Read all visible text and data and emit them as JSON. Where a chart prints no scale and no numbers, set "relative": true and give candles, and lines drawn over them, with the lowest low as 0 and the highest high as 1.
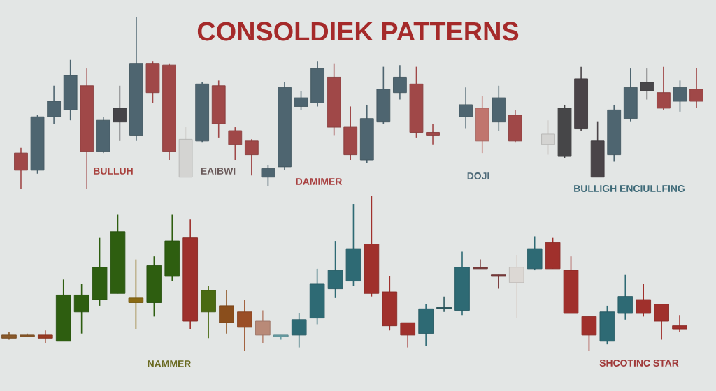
{
  "chart_data": [
    {
      "type": "candlestick",
      "title": "CONSOLDIEK PATTERNS",
      "relative": true,
      "categories": [
        null,
        null,
        null,
        null,
        null,
        null,
        null,
        null,
        null,
        null,
        null,
        null,
        null,
        null,
        null,
        null,
        null,
        null,
        null,
        null,
        null,
        null,
        null,
        null,
        null,
        null,
        null,
        null,
        null,
        null,
        null,
        null,
        null,
        null,
        null,
        null,
        null,
        null,
        null,
        null,
        null,
        null
      ],
      "ohlc": [
        [
          0.21,
          0.24,
          0,
          0.11
        ],
        [
          0.11,
          0.43,
          0.09,
          0.42
        ],
        [
          0.42,
          0.6,
          0.38,
          0.51
        ],
        [
          0.46,
          0.75,
          0.4,
          0.66
        ],
        [
          0.6,
          0.7,
          0,
          0.22
        ],
        [
          0.22,
          0.42,
          0.21,
          0.4
        ],
        [
          0.39,
          0.6,
          0.28,
          0.47
        ],
        [
          0.31,
          1,
          0.28,
          0.73
        ],
        [
          0.73,
          0.74,
          0.5,
          0.56
        ],
        [
          0.72,
          0.73,
          0.17,
          0.22
        ],
        [
          0.07,
          0.36,
          0.07,
          0.29
        ],
        [
          0.28,
          0.62,
          0.27,
          0.61
        ],
        [
          0.6,
          0.63,
          0.3,
          0.38
        ],
        [
          0.34,
          0.36,
          0.17,
          0.26
        ],
        [
          0.28,
          0.29,
          0.08,
          0.2
        ],
        [
          0.07,
          0.14,
          0.02,
          0.12
        ],
        [
          0.13,
          0.62,
          0.11,
          0.59
        ],
        [
          0.48,
          0.57,
          0.46,
          0.53
        ],
        [
          0.5,
          0.74,
          0.48,
          0.7
        ],
        [
          0.65,
          0.73,
          0.31,
          0.36
        ],
        [
          0.36,
          0.48,
          0.17,
          0.2
        ],
        [
          0.17,
          0.49,
          0.15,
          0.41
        ],
        [
          0.39,
          0.71,
          0.38,
          0.58
        ],
        [
          0.56,
          0.72,
          0.52,
          0.65
        ],
        [
          0.61,
          0.71,
          0.3,
          0.33
        ],
        [
          0.33,
          0.38,
          0.26,
          0.31
        ],
        null,
        [
          0.42,
          0.59,
          0.35,
          0.49
        ],
        [
          0.47,
          0.54,
          0.21,
          0.28
        ],
        [
          0.39,
          0.6,
          0.34,
          0.53
        ],
        [
          0.43,
          0.46,
          0.27,
          0.28
        ],
        null,
        [
          0.26,
          0.4,
          0.2,
          0.32
        ],
        [
          0.19,
          0.49,
          0.18,
          0.47
        ],
        [
          0.35,
          0.71,
          0.34,
          0.64
        ],
        [
          0.28,
          0.39,
          0.07,
          0.07
        ],
        [
          0.2,
          0.49,
          0.16,
          0.46
        ],
        [
          0.41,
          0.7,
          0.39,
          0.59
        ],
        [
          0.62,
          0.7,
          0.52,
          0.57
        ],
        [
          0.56,
          0.71,
          0.46,
          0.47
        ],
        [
          0.51,
          0.63,
          0.45,
          0.59
        ],
        [
          0.58,
          0.7,
          0.47,
          0.51
        ]
      ],
      "colors": [
        "#a04848",
        "#4e6570",
        "#4e6570",
        "#4e6570",
        "#a04848",
        "#4e6570",
        "#454448",
        "#4e6570",
        "#a04848",
        "#a04848",
        "#d4d4d2",
        "#4e6570",
        "#a04848",
        "#a04848",
        "#a04848",
        "#4e6570",
        "#4e6570",
        "#4e6570",
        "#4e6570",
        "#a04848",
        "#a04848",
        "#4e6570",
        "#4e6570",
        "#4e6570",
        "#a04848",
        "#a04848",
        null,
        "#4e6570",
        "#c0756e",
        "#4e6570",
        "#a04848",
        null,
        "#d4d4d2",
        "#464648",
        "#4a4448",
        "#4a4448",
        "#4e6570",
        "#4e6570",
        "#48474a",
        "#a04848",
        "#4e6570",
        "#a04848"
      ],
      "annotations": [
        "BULLUH",
        "EAIBWI",
        "DAMIMER",
        "DOJI",
        "BULLIGH ENCIULLFING"
      ]
    },
    {
      "type": "candlestick",
      "relative": true,
      "categories": [
        null,
        null,
        null,
        null,
        null,
        null,
        null,
        null,
        null,
        null,
        null,
        null,
        null,
        null,
        null,
        null,
        null,
        null,
        null,
        null,
        null,
        null,
        null,
        null,
        null,
        null,
        null,
        null,
        null,
        null,
        null,
        null,
        null,
        null,
        null,
        null,
        null,
        null
      ],
      "ohlc": [
        [
          0.1,
          0.12,
          0.07,
          0.08
        ],
        [
          0.1,
          0.11,
          0.09,
          0.09
        ],
        [
          0.1,
          0.13,
          0.05,
          0.08
        ],
        [
          0.06,
          0.46,
          0.06,
          0.36
        ],
        [
          0.25,
          0.43,
          0.11,
          0.36
        ],
        [
          0.33,
          0.73,
          0.29,
          0.54
        ],
        [
          0.37,
          0.88,
          0.37,
          0.77
        ],
        [
          0.34,
          0.59,
          0.14,
          0.31
        ],
        [
          0.31,
          0.61,
          0.22,
          0.55
        ],
        [
          0.48,
          0.88,
          0.45,
          0.71
        ],
        [
          0.73,
          0.85,
          0.14,
          0.19
        ],
        [
          0.25,
          0.42,
          0.08,
          0.39
        ],
        [
          0.29,
          0.39,
          0.11,
          0.18
        ],
        [
          0.25,
          0.33,
          0,
          0.15
        ],
        [
          0.19,
          0.26,
          0.05,
          0.1
        ],
        [
          0.09,
          0.1,
          0.07,
          0.1
        ],
        [
          0.1,
          0.24,
          0.02,
          0.2
        ],
        [
          0.21,
          0.53,
          0.17,
          0.43
        ],
        [
          0.4,
          0.71,
          0.34,
          0.52
        ],
        [
          0.45,
          0.95,
          0.42,
          0.66
        ],
        [
          0.69,
          1,
          0.35,
          0.37
        ],
        [
          0.38,
          0.48,
          0.13,
          0.16
        ],
        [
          0.18,
          0.18,
          0.02,
          0.1
        ],
        [
          0.11,
          0.3,
          0.03,
          0.27
        ],
        [
          0.27,
          0.35,
          0.25,
          0.28
        ],
        [
          0.26,
          0.64,
          0.23,
          0.54
        ],
        [
          0.54,
          0.59,
          0.53,
          0.53
        ],
        [
          0.49,
          0.49,
          0.4,
          0.48
        ],
        [
          0.44,
          0.62,
          0.21,
          0.54
        ],
        [
          0.53,
          0.74,
          0.52,
          0.66
        ],
        [
          0.7,
          0.73,
          0.53,
          0.53
        ],
        [
          0.52,
          0.61,
          0.24,
          0.24
        ],
        [
          0.22,
          0.22,
          0,
          0.1
        ],
        [
          0.06,
          0.29,
          0.04,
          0.25
        ],
        [
          0.24,
          0.49,
          0.2,
          0.35
        ],
        [
          0.33,
          0.43,
          0.22,
          0.24
        ],
        [
          0.3,
          0.3,
          0.07,
          0.19
        ],
        [
          0.16,
          0.23,
          0.12,
          0.14
        ]
      ],
      "colors": [
        "#8a5a2a",
        "#8a5a2a",
        "#9a3a22",
        "#2e5e10",
        "#2e5e10",
        "#2e5e10",
        "#2e5e10",
        "#8a6a14",
        "#2e5e10",
        "#2e5e10",
        "#9e302c",
        "#4a6a12",
        "#8a4e1c",
        "#9a4e26",
        "#b98a78",
        "#6aa0a6",
        "#2e6a74",
        "#2e6a74",
        "#2e6a74",
        "#2e6a74",
        "#a0302c",
        "#a0302c",
        "#a0302c",
        "#2e6a74",
        "#2e5a60",
        "#2e6a74",
        "#7a3a3a",
        "#7a3a3a",
        "#dcd8d4",
        "#2e6a74",
        "#a0302c",
        "#a0302c",
        "#a0302c",
        "#2e6a74",
        "#2e6a74",
        "#a0302c",
        "#a0302c",
        "#a0302c"
      ],
      "annotations": [
        "NAMMER",
        "SHCOTINC STAR"
      ]
    }
  ]
}
